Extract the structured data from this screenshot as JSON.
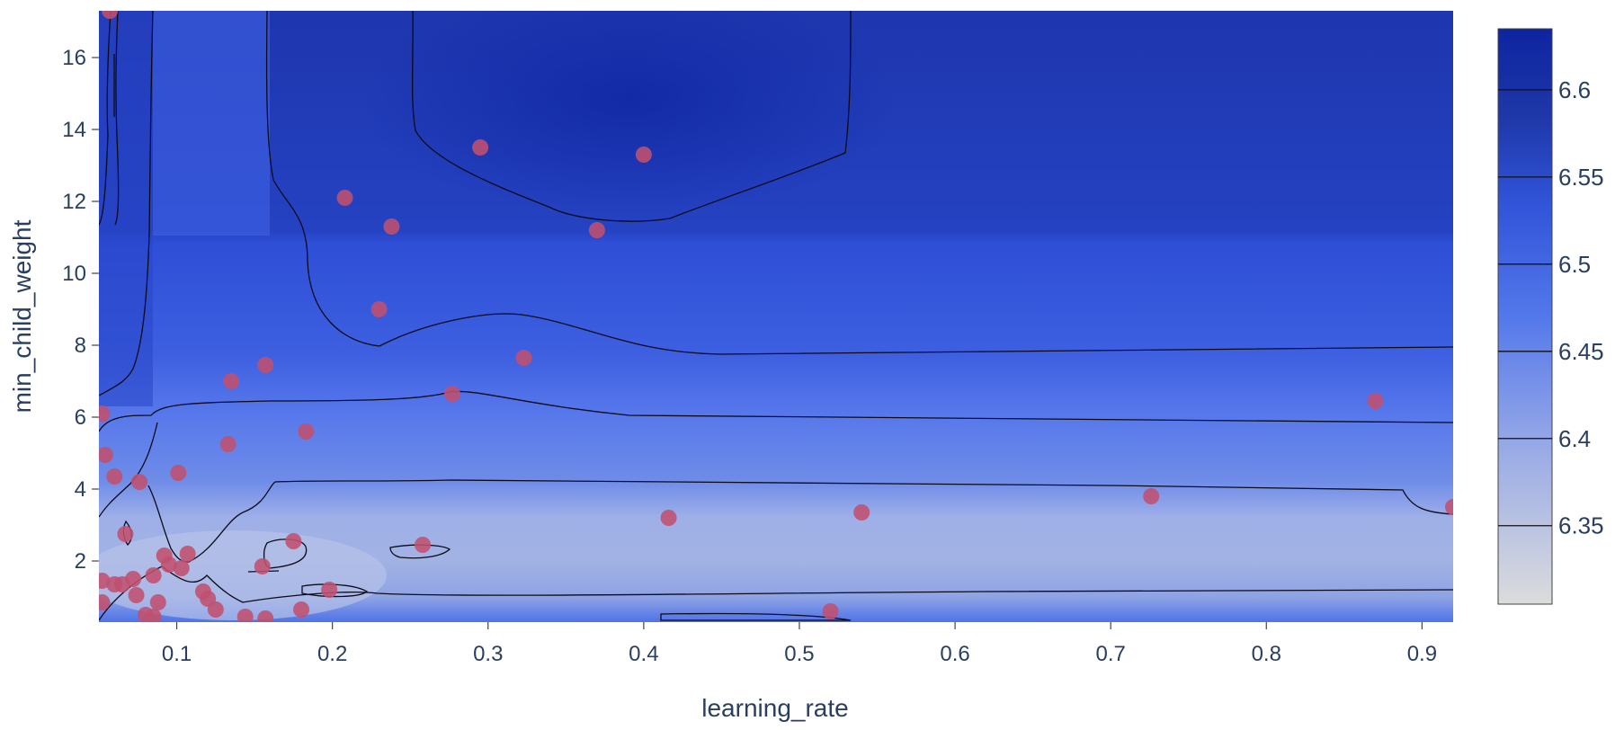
{
  "chart_data": {
    "type": "contour",
    "xlabel": "learning_rate",
    "ylabel": "min_child_weight",
    "xlim": [
      0.05,
      0.92
    ],
    "ylim": [
      0.3,
      17.3
    ],
    "x_ticks": [
      0.1,
      0.2,
      0.3,
      0.4,
      0.5,
      0.6,
      0.7,
      0.8,
      0.9
    ],
    "x_tick_labels": [
      "0.1",
      "0.2",
      "0.3",
      "0.4",
      "0.5",
      "0.6",
      "0.7",
      "0.8",
      "0.9"
    ],
    "y_ticks": [
      2,
      4,
      6,
      8,
      10,
      12,
      14,
      16
    ],
    "y_tick_labels": [
      "2",
      "4",
      "6",
      "8",
      "10",
      "12",
      "14",
      "16"
    ],
    "colorbar": {
      "range": [
        6.305,
        6.635
      ],
      "ticks": [
        6.35,
        6.4,
        6.45,
        6.5,
        6.55,
        6.6
      ],
      "tick_labels": [
        "6.35",
        "6.4",
        "6.45",
        "6.5",
        "6.55",
        "6.6"
      ],
      "colorscale": [
        [
          0.0,
          "#dcdcdc"
        ],
        [
          0.25,
          "#9eaee6"
        ],
        [
          0.5,
          "#5378ea"
        ],
        [
          0.7,
          "#3053d8"
        ],
        [
          0.85,
          "#1e37a8"
        ],
        [
          1.0,
          "#0d24a0"
        ]
      ]
    },
    "marker_color": "#c0506e",
    "contour_levels": [
      6.35,
      6.4,
      6.45,
      6.5,
      6.55,
      6.6
    ],
    "points": [
      {
        "x": 0.057,
        "y": 17.3
      },
      {
        "x": 0.295,
        "y": 13.5
      },
      {
        "x": 0.4,
        "y": 13.3
      },
      {
        "x": 0.208,
        "y": 12.1
      },
      {
        "x": 0.238,
        "y": 11.3
      },
      {
        "x": 0.37,
        "y": 11.2
      },
      {
        "x": 0.23,
        "y": 9.0
      },
      {
        "x": 0.323,
        "y": 7.65
      },
      {
        "x": 0.157,
        "y": 7.45
      },
      {
        "x": 0.135,
        "y": 7.0
      },
      {
        "x": 0.277,
        "y": 6.65
      },
      {
        "x": 0.87,
        "y": 6.45
      },
      {
        "x": 0.052,
        "y": 6.1
      },
      {
        "x": 0.183,
        "y": 5.6
      },
      {
        "x": 0.133,
        "y": 5.25
      },
      {
        "x": 0.054,
        "y": 4.95
      },
      {
        "x": 0.101,
        "y": 4.45
      },
      {
        "x": 0.06,
        "y": 4.35
      },
      {
        "x": 0.076,
        "y": 4.2
      },
      {
        "x": 0.726,
        "y": 3.8
      },
      {
        "x": 0.92,
        "y": 3.5
      },
      {
        "x": 0.54,
        "y": 3.35
      },
      {
        "x": 0.416,
        "y": 3.2
      },
      {
        "x": 0.067,
        "y": 2.75
      },
      {
        "x": 0.175,
        "y": 2.55
      },
      {
        "x": 0.258,
        "y": 2.45
      },
      {
        "x": 0.107,
        "y": 2.2
      },
      {
        "x": 0.092,
        "y": 2.15
      },
      {
        "x": 0.095,
        "y": 1.9
      },
      {
        "x": 0.103,
        "y": 1.8
      },
      {
        "x": 0.155,
        "y": 1.85
      },
      {
        "x": 0.085,
        "y": 1.6
      },
      {
        "x": 0.072,
        "y": 1.5
      },
      {
        "x": 0.052,
        "y": 1.45
      },
      {
        "x": 0.06,
        "y": 1.35
      },
      {
        "x": 0.065,
        "y": 1.35
      },
      {
        "x": 0.198,
        "y": 1.2
      },
      {
        "x": 0.117,
        "y": 1.15
      },
      {
        "x": 0.074,
        "y": 1.05
      },
      {
        "x": 0.12,
        "y": 0.95
      },
      {
        "x": 0.052,
        "y": 0.85
      },
      {
        "x": 0.088,
        "y": 0.85
      },
      {
        "x": 0.125,
        "y": 0.65
      },
      {
        "x": 0.18,
        "y": 0.65
      },
      {
        "x": 0.52,
        "y": 0.6
      },
      {
        "x": 0.08,
        "y": 0.5
      },
      {
        "x": 0.085,
        "y": 0.45
      },
      {
        "x": 0.144,
        "y": 0.45
      },
      {
        "x": 0.157,
        "y": 0.4
      }
    ]
  }
}
